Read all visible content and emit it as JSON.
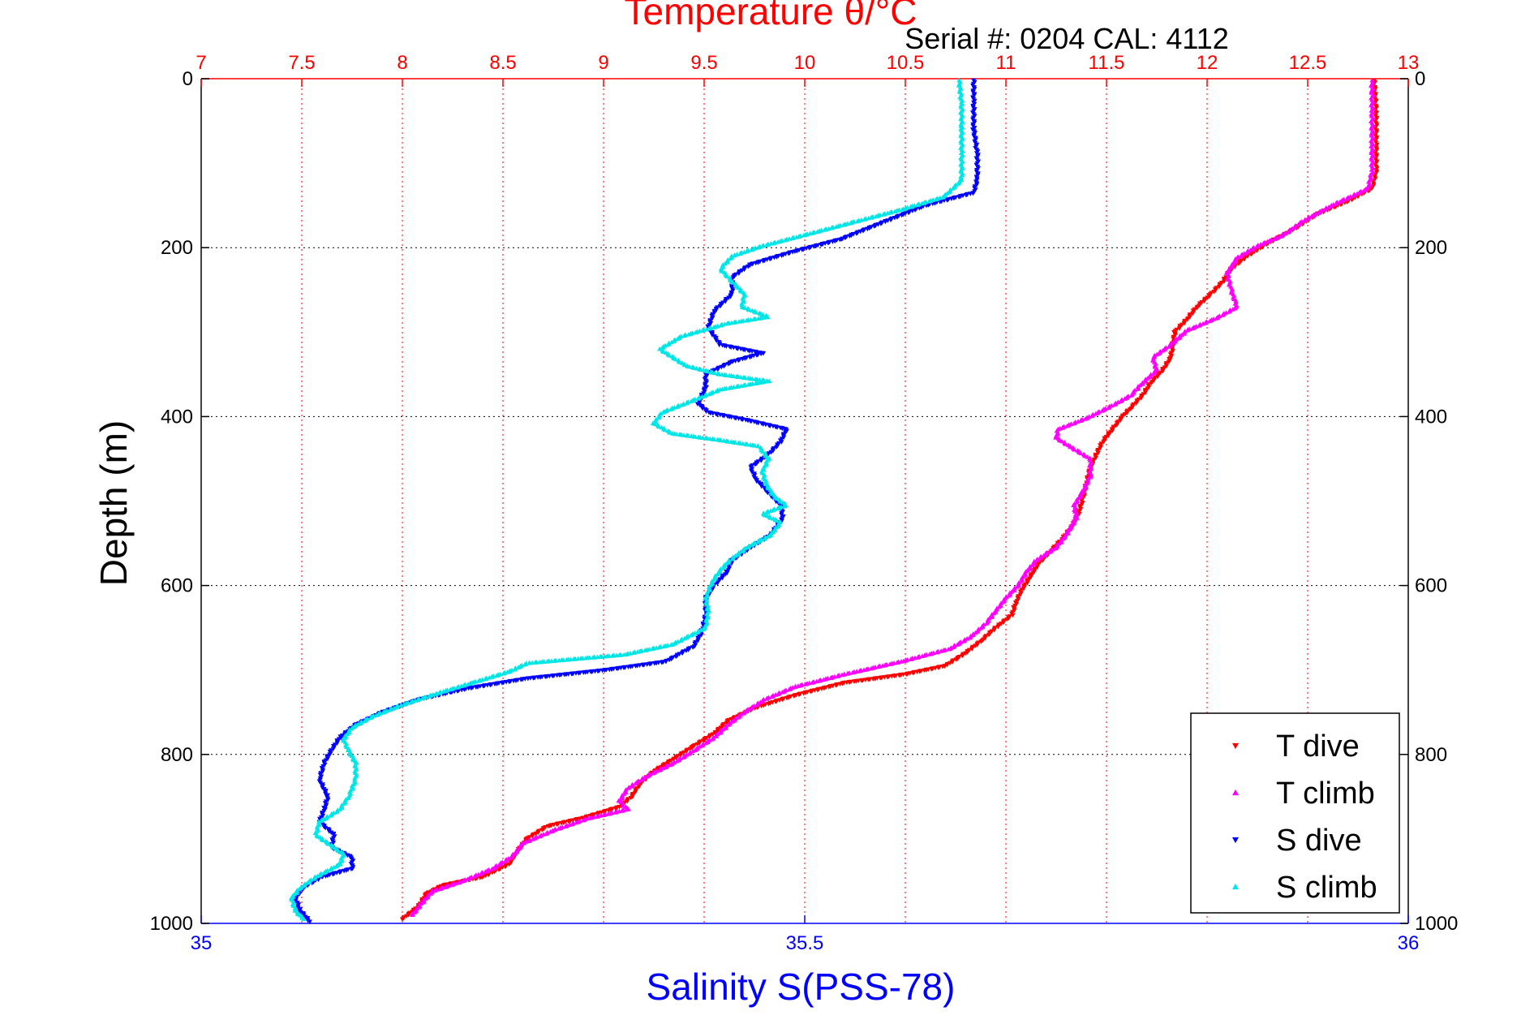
{
  "chart_data": {
    "type": "scatter",
    "title_top": "Temperature θ/°C",
    "serial_label": "Serial #: 0204  CAL: 4112",
    "xlabel_bottom": "Salinity S(PSS-78)",
    "ylabel": "Depth (m)",
    "x_top": {
      "range": [
        7,
        13
      ],
      "ticks": [
        "7",
        "7.5",
        "8",
        "8.5",
        "9",
        "9.5",
        "10",
        "10.5",
        "11",
        "11.5",
        "12",
        "12.5",
        "13"
      ]
    },
    "x_bottom": {
      "range": [
        35,
        36
      ],
      "ticks": [
        "35",
        "35.5",
        "36"
      ]
    },
    "y": {
      "range": [
        0,
        1000
      ],
      "reversed": true,
      "ticks": [
        "0",
        "200",
        "400",
        "600",
        "800",
        "1000"
      ]
    },
    "grid": true,
    "legend_position": "bottom-right",
    "colors": {
      "temperature_axis": "#ff0000",
      "salinity_axis": "#0000ff",
      "grid": "#000000",
      "axis": "#000000"
    },
    "series": [
      {
        "name": "T dive",
        "axis": "temperature",
        "color": "#ff0000",
        "marker": "triangle-down",
        "points": [
          [
            12.83,
            2
          ],
          [
            12.84,
            40
          ],
          [
            12.84,
            80
          ],
          [
            12.84,
            110
          ],
          [
            12.82,
            130
          ],
          [
            12.7,
            145
          ],
          [
            12.55,
            160
          ],
          [
            12.42,
            180
          ],
          [
            12.3,
            195
          ],
          [
            12.2,
            210
          ],
          [
            12.12,
            225
          ],
          [
            12.08,
            240
          ],
          [
            12.02,
            255
          ],
          [
            11.95,
            270
          ],
          [
            11.9,
            285
          ],
          [
            11.84,
            300
          ],
          [
            11.83,
            315
          ],
          [
            11.82,
            330
          ],
          [
            11.78,
            345
          ],
          [
            11.72,
            360
          ],
          [
            11.68,
            375
          ],
          [
            11.62,
            390
          ],
          [
            11.58,
            400
          ],
          [
            11.53,
            415
          ],
          [
            11.48,
            430
          ],
          [
            11.45,
            445
          ],
          [
            11.42,
            460
          ],
          [
            11.4,
            480
          ],
          [
            11.38,
            500
          ],
          [
            11.36,
            515
          ],
          [
            11.33,
            530
          ],
          [
            11.28,
            545
          ],
          [
            11.22,
            560
          ],
          [
            11.16,
            575
          ],
          [
            11.12,
            590
          ],
          [
            11.08,
            605
          ],
          [
            11.05,
            620
          ],
          [
            11.03,
            635
          ],
          [
            10.95,
            650
          ],
          [
            10.88,
            665
          ],
          [
            10.8,
            680
          ],
          [
            10.7,
            695
          ],
          [
            10.5,
            705
          ],
          [
            10.2,
            715
          ],
          [
            9.95,
            730
          ],
          [
            9.75,
            745
          ],
          [
            9.62,
            760
          ],
          [
            9.55,
            775
          ],
          [
            9.45,
            790
          ],
          [
            9.35,
            805
          ],
          [
            9.25,
            820
          ],
          [
            9.18,
            835
          ],
          [
            9.14,
            850
          ],
          [
            9.08,
            862
          ],
          [
            8.9,
            875
          ],
          [
            8.72,
            885
          ],
          [
            8.62,
            900
          ],
          [
            8.57,
            915
          ],
          [
            8.53,
            930
          ],
          [
            8.4,
            945
          ],
          [
            8.2,
            955
          ],
          [
            8.12,
            965
          ],
          [
            8.08,
            980
          ],
          [
            8.0,
            995
          ]
        ]
      },
      {
        "name": "T climb",
        "axis": "temperature",
        "color": "#ff00ff",
        "marker": "triangle-up",
        "points": [
          [
            12.82,
            2
          ],
          [
            12.82,
            40
          ],
          [
            12.82,
            80
          ],
          [
            12.82,
            110
          ],
          [
            12.8,
            130
          ],
          [
            12.62,
            150
          ],
          [
            12.48,
            168
          ],
          [
            12.38,
            185
          ],
          [
            12.25,
            198
          ],
          [
            12.15,
            212
          ],
          [
            12.1,
            230
          ],
          [
            12.12,
            250
          ],
          [
            12.15,
            270
          ],
          [
            12.05,
            283
          ],
          [
            11.9,
            298
          ],
          [
            11.82,
            315
          ],
          [
            11.73,
            330
          ],
          [
            11.75,
            345
          ],
          [
            11.68,
            360
          ],
          [
            11.62,
            375
          ],
          [
            11.52,
            388
          ],
          [
            11.4,
            402
          ],
          [
            11.26,
            415
          ],
          [
            11.25,
            425
          ],
          [
            11.33,
            437
          ],
          [
            11.42,
            450
          ],
          [
            11.42,
            470
          ],
          [
            11.38,
            490
          ],
          [
            11.34,
            505
          ],
          [
            11.35,
            520
          ],
          [
            11.3,
            540
          ],
          [
            11.25,
            555
          ],
          [
            11.15,
            570
          ],
          [
            11.1,
            585
          ],
          [
            11.06,
            600
          ],
          [
            11.0,
            615
          ],
          [
            10.95,
            630
          ],
          [
            10.9,
            645
          ],
          [
            10.83,
            660
          ],
          [
            10.72,
            675
          ],
          [
            10.48,
            690
          ],
          [
            10.2,
            705
          ],
          [
            9.95,
            720
          ],
          [
            9.8,
            735
          ],
          [
            9.7,
            750
          ],
          [
            9.62,
            765
          ],
          [
            9.55,
            780
          ],
          [
            9.45,
            795
          ],
          [
            9.35,
            810
          ],
          [
            9.22,
            825
          ],
          [
            9.12,
            840
          ],
          [
            9.08,
            855
          ],
          [
            9.12,
            865
          ],
          [
            8.92,
            876
          ],
          [
            8.75,
            890
          ],
          [
            8.6,
            905
          ],
          [
            8.55,
            920
          ],
          [
            8.45,
            935
          ],
          [
            8.3,
            950
          ],
          [
            8.15,
            962
          ],
          [
            8.1,
            975
          ],
          [
            8.05,
            990
          ]
        ]
      },
      {
        "name": "S dive",
        "axis": "salinity",
        "color": "#0000ff",
        "marker": "triangle-down",
        "points": [
          [
            35.64,
            2
          ],
          [
            35.64,
            30
          ],
          [
            35.64,
            60
          ],
          [
            35.643,
            90
          ],
          [
            35.643,
            120
          ],
          [
            35.64,
            135
          ],
          [
            35.6,
            150
          ],
          [
            35.565,
            170
          ],
          [
            35.53,
            190
          ],
          [
            35.49,
            205
          ],
          [
            35.455,
            220
          ],
          [
            35.44,
            235
          ],
          [
            35.44,
            255
          ],
          [
            35.425,
            275
          ],
          [
            35.42,
            295
          ],
          [
            35.43,
            315
          ],
          [
            35.465,
            325
          ],
          [
            35.44,
            335
          ],
          [
            35.418,
            350
          ],
          [
            35.418,
            365
          ],
          [
            35.412,
            385
          ],
          [
            35.42,
            395
          ],
          [
            35.455,
            405
          ],
          [
            35.485,
            415
          ],
          [
            35.48,
            430
          ],
          [
            35.47,
            445
          ],
          [
            35.455,
            460
          ],
          [
            35.46,
            475
          ],
          [
            35.47,
            490
          ],
          [
            35.48,
            505
          ],
          [
            35.482,
            520
          ],
          [
            35.472,
            540
          ],
          [
            35.455,
            555
          ],
          [
            35.44,
            570
          ],
          [
            35.435,
            585
          ],
          [
            35.425,
            600
          ],
          [
            35.418,
            615
          ],
          [
            35.418,
            635
          ],
          [
            35.415,
            655
          ],
          [
            35.408,
            672
          ],
          [
            35.385,
            690
          ],
          [
            35.335,
            700
          ],
          [
            35.27,
            710
          ],
          [
            35.22,
            722
          ],
          [
            35.18,
            735
          ],
          [
            35.15,
            750
          ],
          [
            35.128,
            765
          ],
          [
            35.115,
            780
          ],
          [
            35.108,
            795
          ],
          [
            35.102,
            810
          ],
          [
            35.098,
            830
          ],
          [
            35.105,
            850
          ],
          [
            35.102,
            865
          ],
          [
            35.098,
            880
          ],
          [
            35.11,
            895
          ],
          [
            35.108,
            910
          ],
          [
            35.125,
            922
          ],
          [
            35.125,
            935
          ],
          [
            35.1,
            945
          ],
          [
            35.085,
            957
          ],
          [
            35.078,
            970
          ],
          [
            35.082,
            985
          ],
          [
            35.09,
            998
          ]
        ]
      },
      {
        "name": "S climb",
        "axis": "salinity",
        "color": "#00e6e6",
        "marker": "triangle-up",
        "points": [
          [
            35.628,
            2
          ],
          [
            35.63,
            30
          ],
          [
            35.63,
            60
          ],
          [
            35.63,
            90
          ],
          [
            35.63,
            120
          ],
          [
            35.615,
            140
          ],
          [
            35.58,
            155
          ],
          [
            35.54,
            170
          ],
          [
            35.5,
            185
          ],
          [
            35.465,
            198
          ],
          [
            35.44,
            210
          ],
          [
            35.43,
            225
          ],
          [
            35.44,
            240
          ],
          [
            35.45,
            255
          ],
          [
            35.448,
            270
          ],
          [
            35.47,
            282
          ],
          [
            35.435,
            290
          ],
          [
            35.398,
            305
          ],
          [
            35.38,
            320
          ],
          [
            35.402,
            340
          ],
          [
            35.43,
            350
          ],
          [
            35.47,
            358
          ],
          [
            35.43,
            368
          ],
          [
            35.4,
            385
          ],
          [
            35.382,
            395
          ],
          [
            35.375,
            408
          ],
          [
            35.39,
            420
          ],
          [
            35.43,
            428
          ],
          [
            35.462,
            435
          ],
          [
            35.47,
            450
          ],
          [
            35.465,
            465
          ],
          [
            35.468,
            480
          ],
          [
            35.475,
            495
          ],
          [
            35.485,
            505
          ],
          [
            35.465,
            515
          ],
          [
            35.48,
            525
          ],
          [
            35.472,
            540
          ],
          [
            35.452,
            555
          ],
          [
            35.438,
            570
          ],
          [
            35.428,
            585
          ],
          [
            35.422,
            600
          ],
          [
            35.418,
            615
          ],
          [
            35.42,
            630
          ],
          [
            35.418,
            650
          ],
          [
            35.39,
            670
          ],
          [
            35.35,
            682
          ],
          [
            35.27,
            692
          ],
          [
            35.255,
            702
          ],
          [
            35.225,
            715
          ],
          [
            35.195,
            728
          ],
          [
            35.165,
            742
          ],
          [
            35.142,
            755
          ],
          [
            35.125,
            768
          ],
          [
            35.118,
            782
          ],
          [
            35.122,
            795
          ],
          [
            35.128,
            810
          ],
          [
            35.128,
            830
          ],
          [
            35.122,
            850
          ],
          [
            35.115,
            865
          ],
          [
            35.098,
            880
          ],
          [
            35.095,
            895
          ],
          [
            35.105,
            905
          ],
          [
            35.118,
            918
          ],
          [
            35.115,
            930
          ],
          [
            35.095,
            945
          ],
          [
            35.082,
            958
          ],
          [
            35.075,
            970
          ],
          [
            35.078,
            985
          ],
          [
            35.085,
            995
          ]
        ]
      }
    ]
  }
}
